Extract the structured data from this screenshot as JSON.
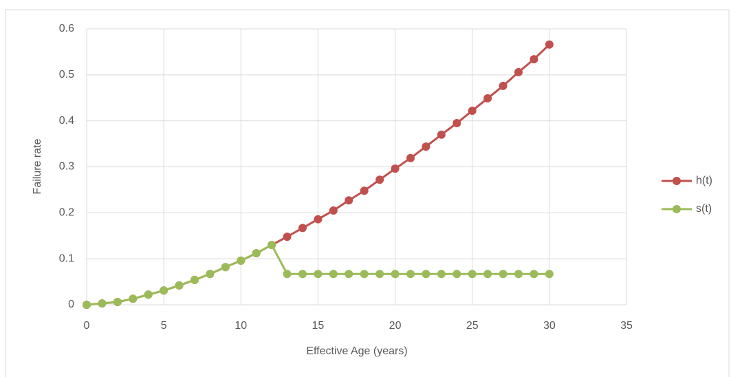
{
  "chart_data": {
    "type": "line",
    "x_label": "Effective Age (years)",
    "y_label": "Failure rate",
    "x": [
      0,
      1,
      2,
      3,
      4,
      5,
      6,
      7,
      8,
      9,
      10,
      11,
      12,
      13,
      14,
      15,
      16,
      17,
      18,
      19,
      20,
      21,
      22,
      23,
      24,
      25,
      26,
      27,
      28,
      29,
      30
    ],
    "series": [
      {
        "name": "h(t)",
        "color": "#c0504d",
        "values": [
          0,
          0.003,
          0.006,
          0.013,
          0.022,
          0.031,
          0.042,
          0.054,
          0.067,
          0.082,
          0.096,
          0.112,
          0.13,
          0.148,
          0.167,
          0.186,
          0.205,
          0.227,
          0.248,
          0.272,
          0.296,
          0.319,
          0.344,
          0.37,
          0.395,
          0.422,
          0.449,
          0.476,
          0.506,
          0.534,
          0.566
        ]
      },
      {
        "name": "s(t)",
        "color": "#9bbb59",
        "values": [
          0,
          0.003,
          0.006,
          0.013,
          0.022,
          0.031,
          0.042,
          0.054,
          0.067,
          0.082,
          0.096,
          0.112,
          0.13,
          0.067,
          0.067,
          0.067,
          0.067,
          0.067,
          0.067,
          0.067,
          0.067,
          0.067,
          0.067,
          0.067,
          0.067,
          0.067,
          0.067,
          0.067,
          0.067,
          0.067,
          0.067
        ]
      }
    ],
    "xlim": [
      0,
      35
    ],
    "xticks": [
      0,
      5,
      10,
      15,
      20,
      25,
      30,
      35
    ],
    "ylim": [
      0,
      0.6
    ],
    "yticks": [
      0,
      0.1,
      0.2,
      0.3,
      0.4,
      0.5,
      0.6
    ],
    "grid": true,
    "legend": "right"
  }
}
